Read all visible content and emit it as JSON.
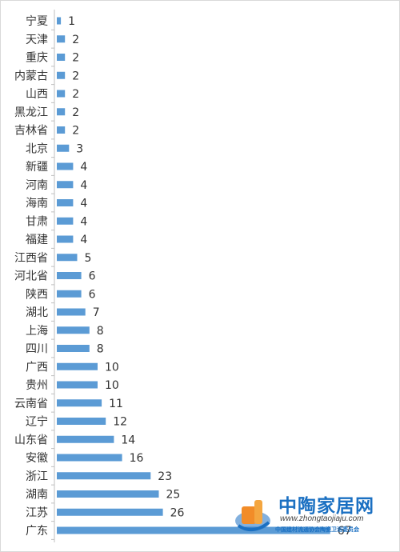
{
  "chart_data": {
    "type": "bar",
    "orientation": "horizontal",
    "categories": [
      "宁夏",
      "天津",
      "重庆",
      "内蒙古",
      "山西",
      "黑龙江",
      "吉林省",
      "北京",
      "新疆",
      "河南",
      "海南",
      "甘肃",
      "福建",
      "江西省",
      "河北省",
      "陕西",
      "湖北",
      "上海",
      "四川",
      "广西",
      "贵州",
      "云南省",
      "辽宁",
      "山东省",
      "安徽",
      "浙江",
      "湖南",
      "江苏",
      "广东"
    ],
    "values": [
      1,
      2,
      2,
      2,
      2,
      2,
      2,
      3,
      4,
      4,
      4,
      4,
      4,
      5,
      6,
      6,
      7,
      8,
      8,
      10,
      10,
      11,
      12,
      14,
      16,
      23,
      25,
      26,
      67
    ],
    "title": "",
    "xlabel": "",
    "ylabel": "",
    "xlim": [
      0,
      68
    ],
    "grid": false,
    "legend": "none",
    "bar_color": "#5b9bd5",
    "data_labels": true
  },
  "watermark": {
    "title": "中陶家居网",
    "url": "www.zhongtaojiaju.com",
    "org": "中国建材流通协会陶瓷卫浴委员会",
    "logo_icon": "ztj-logo-icon",
    "color": "#1b70c2",
    "accent": "#f28c28"
  }
}
